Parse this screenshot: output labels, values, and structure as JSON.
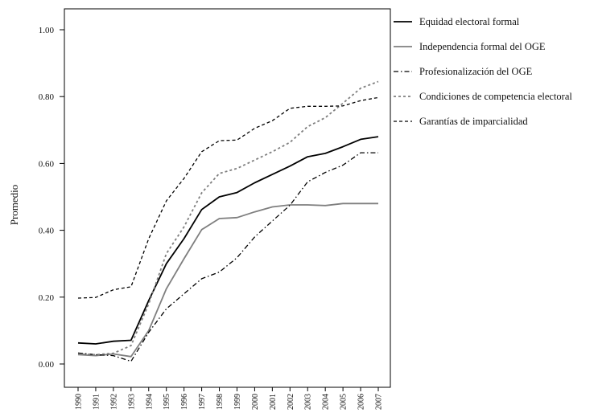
{
  "chart_data": {
    "type": "line",
    "title": "",
    "xlabel": "",
    "ylabel": "Promedio",
    "ylim": [
      0,
      1
    ],
    "yticks": [
      "0.00",
      "0.20",
      "0.40",
      "0.60",
      "0.80",
      "1.00"
    ],
    "ytick_values": [
      0,
      0.2,
      0.4,
      0.6,
      0.8,
      1.0
    ],
    "x": [
      "1990",
      "1991",
      "1992",
      "1993",
      "1994",
      "1995",
      "1996",
      "1997",
      "1998",
      "1999",
      "2000",
      "2001",
      "2002",
      "2003",
      "2004",
      "2005",
      "2006",
      "2007"
    ],
    "grid": false,
    "legend_position": "right",
    "series": [
      {
        "name": "Equidad electoral formal",
        "style": "solid",
        "color": "#000000",
        "values": [
          0.063,
          0.06,
          0.068,
          0.071,
          0.19,
          0.3,
          0.375,
          0.462,
          0.5,
          0.513,
          0.542,
          0.567,
          0.592,
          0.62,
          0.63,
          0.65,
          0.672,
          0.68
        ]
      },
      {
        "name": "Independencia formal del OGE",
        "style": "solid",
        "color": "#7f7f7f",
        "values": [
          0.028,
          0.025,
          0.03,
          0.022,
          0.1,
          0.225,
          0.315,
          0.402,
          0.435,
          0.438,
          0.455,
          0.47,
          0.476,
          0.476,
          0.474,
          0.48,
          0.48,
          0.48
        ]
      },
      {
        "name": "Profesionalización del OGE",
        "style": "dashdot",
        "color": "#000000",
        "values": [
          0.033,
          0.028,
          0.025,
          0.008,
          0.095,
          0.165,
          0.21,
          0.255,
          0.275,
          0.318,
          0.38,
          0.428,
          0.475,
          0.545,
          0.573,
          0.595,
          0.632,
          0.632
        ]
      },
      {
        "name": "Condiciones de competencia electoral",
        "style": "dotted",
        "color": "#7f7f7f",
        "values": [
          0.03,
          0.028,
          0.032,
          0.055,
          0.18,
          0.33,
          0.41,
          0.512,
          0.57,
          0.585,
          0.61,
          0.635,
          0.663,
          0.71,
          0.737,
          0.78,
          0.825,
          0.845
        ]
      },
      {
        "name": "Garantías de imparcialidad",
        "style": "dashed",
        "color": "#000000",
        "values": [
          0.197,
          0.199,
          0.222,
          0.231,
          0.375,
          0.488,
          0.555,
          0.635,
          0.668,
          0.67,
          0.705,
          0.728,
          0.765,
          0.771,
          0.771,
          0.772,
          0.788,
          0.797
        ]
      }
    ]
  }
}
